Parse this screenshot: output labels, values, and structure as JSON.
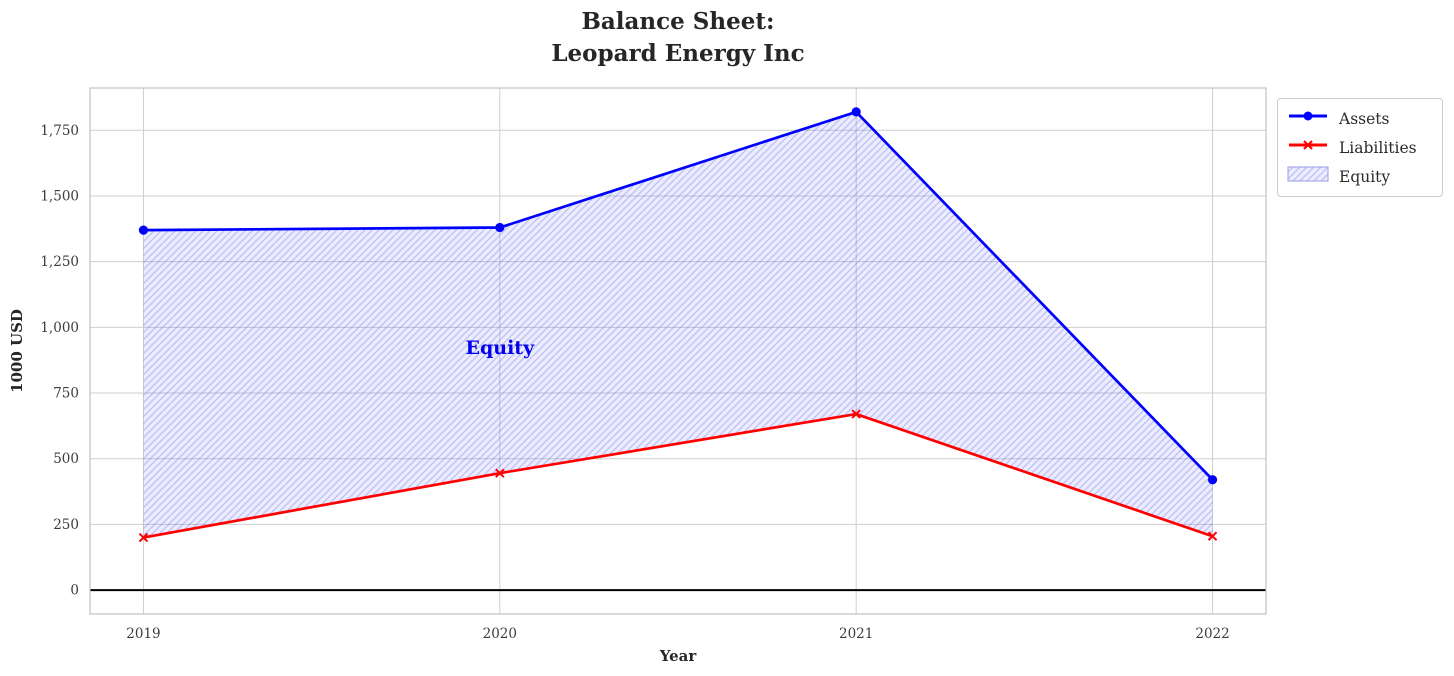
{
  "chart_data": {
    "type": "line",
    "title_lines": [
      "Balance Sheet:",
      "Leopard Energy Inc"
    ],
    "xlabel": "Year",
    "ylabel": "1000 USD",
    "x": [
      2019,
      2020,
      2021,
      2022
    ],
    "xtick_labels": [
      "2019",
      "2020",
      "2021",
      "2022"
    ],
    "yticks": [
      0,
      250,
      500,
      750,
      1000,
      1250,
      1500,
      1750
    ],
    "xlim": [
      2018.85,
      2022.15
    ],
    "ylim": [
      -91,
      1911
    ],
    "grid": true,
    "series": [
      {
        "name": "Assets",
        "color": "#0000ff",
        "marker": "circle",
        "values": [
          1370,
          1380,
          1820,
          420
        ]
      },
      {
        "name": "Liabilities",
        "color": "#ff0000",
        "marker": "x",
        "values": [
          200,
          445,
          670,
          205
        ]
      }
    ],
    "fill_between": {
      "label": "Equity",
      "between": [
        "Assets",
        "Liabilities"
      ],
      "equity_values": [
        1170,
        935,
        1150,
        215
      ],
      "fill_color": "#4646ff",
      "fill_opacity": 0.1,
      "hatch": "/",
      "hatch_color": "#5050e6",
      "hatch_opacity": 0.3,
      "edge_color": "#9a9ae8"
    },
    "annotation": {
      "text": "Equity",
      "x": 2020,
      "y": 920,
      "color": "#0000ee"
    },
    "axhline": {
      "y": 0,
      "color": "#000000"
    },
    "legend": {
      "position": "outside-top-right",
      "entries": [
        "Assets",
        "Liabilities",
        "Equity"
      ]
    },
    "colors": {
      "grid": "#cfcfcf",
      "frame": "#c2c2c2",
      "tick_text": "#3c3c3c",
      "title_text": "#262626",
      "background": "#ffffff"
    }
  }
}
